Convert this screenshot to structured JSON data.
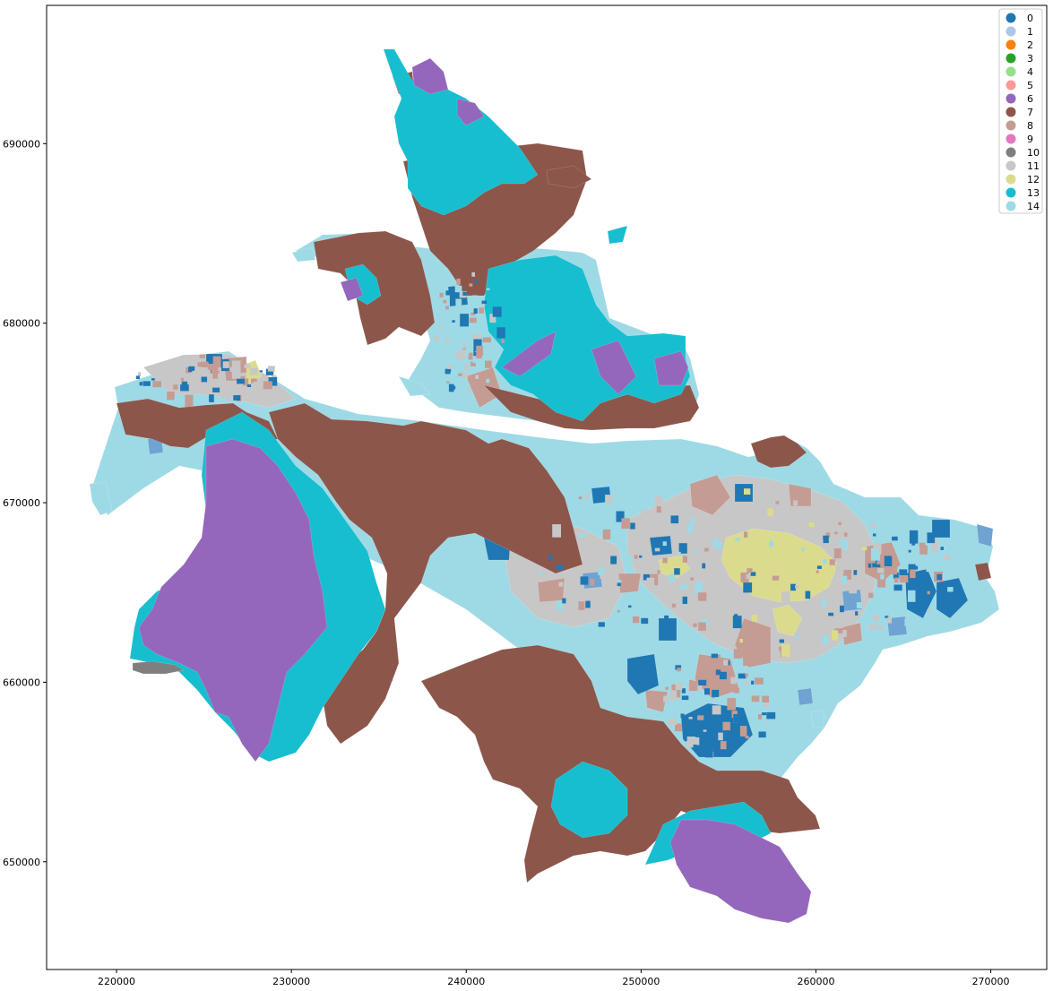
{
  "chart_data": {
    "type": "choropleth-map",
    "title": "",
    "xlabel": "",
    "ylabel": "",
    "xlim": [
      216000,
      273200
    ],
    "ylim": [
      644000,
      697700
    ],
    "x_ticks": [
      220000,
      230000,
      240000,
      250000,
      260000,
      270000
    ],
    "y_ticks": [
      650000,
      660000,
      670000,
      680000,
      690000
    ],
    "legend": {
      "placement": "top-right",
      "entries": [
        {
          "label": "0",
          "color": "#1f77b4"
        },
        {
          "label": "1",
          "color": "#aec7e8"
        },
        {
          "label": "2",
          "color": "#ff7f0e"
        },
        {
          "label": "3",
          "color": "#2ca02c"
        },
        {
          "label": "4",
          "color": "#98df8a"
        },
        {
          "label": "5",
          "color": "#ff9896"
        },
        {
          "label": "6",
          "color": "#9467bd"
        },
        {
          "label": "7",
          "color": "#8c564b"
        },
        {
          "label": "8",
          "color": "#c49c94"
        },
        {
          "label": "9",
          "color": "#e377c2"
        },
        {
          "label": "10",
          "color": "#7f7f7f"
        },
        {
          "label": "11",
          "color": "#c7c7c7"
        },
        {
          "label": "12",
          "color": "#dbdb8d"
        },
        {
          "label": "13",
          "color": "#17becf"
        },
        {
          "label": "14",
          "color": "#9edae5"
        }
      ]
    }
  }
}
